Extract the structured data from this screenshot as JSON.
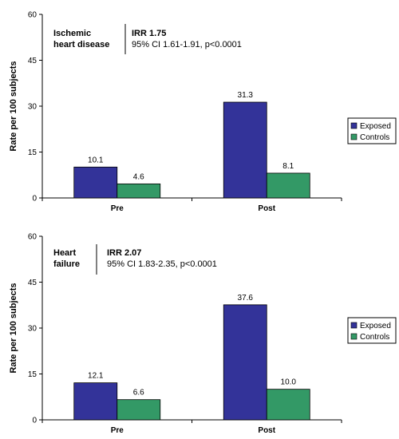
{
  "colors": {
    "exposed": "#333399",
    "controls": "#339966",
    "axis": "#000000"
  },
  "chart_data": [
    {
      "type": "bar",
      "title": "",
      "categories": [
        "Pre",
        "Post"
      ],
      "ylabel": "Rate per 100 subjects",
      "xlabel": "",
      "ylim": [
        0,
        60
      ],
      "yticks": [
        "0",
        "15",
        "30",
        "45",
        "60"
      ],
      "ytick_values": [
        0,
        15,
        30,
        45,
        60
      ],
      "grid": false,
      "legend_position": "right",
      "series": [
        {
          "name": "Exposed",
          "values": [
            10.1,
            31.3
          ],
          "labels": [
            "10.1",
            "31.3"
          ]
        },
        {
          "name": "Controls",
          "values": [
            4.6,
            8.1
          ],
          "labels": [
            "4.6",
            "8.1"
          ]
        }
      ],
      "annotation": {
        "title_lines": [
          "Ischemic",
          "heart disease"
        ],
        "irr": "IRR 1.75",
        "ci": "95% CI 1.61-1.91, p<0.0001"
      }
    },
    {
      "type": "bar",
      "title": "",
      "categories": [
        "Pre",
        "Post"
      ],
      "ylabel": "Rate per 100 subjects",
      "xlabel": "",
      "ylim": [
        0,
        60
      ],
      "yticks": [
        "0",
        "15",
        "30",
        "45",
        "60"
      ],
      "ytick_values": [
        0,
        15,
        30,
        45,
        60
      ],
      "grid": false,
      "legend_position": "right",
      "series": [
        {
          "name": "Exposed",
          "values": [
            12.1,
            37.6
          ],
          "labels": [
            "12.1",
            "37.6"
          ]
        },
        {
          "name": "Controls",
          "values": [
            6.6,
            10.0
          ],
          "labels": [
            "6.6",
            "10.0"
          ]
        }
      ],
      "annotation": {
        "title_lines": [
          "Heart",
          "failure"
        ],
        "irr": "IRR 2.07",
        "ci": "95% CI 1.83-2.35, p<0.0001"
      }
    }
  ]
}
